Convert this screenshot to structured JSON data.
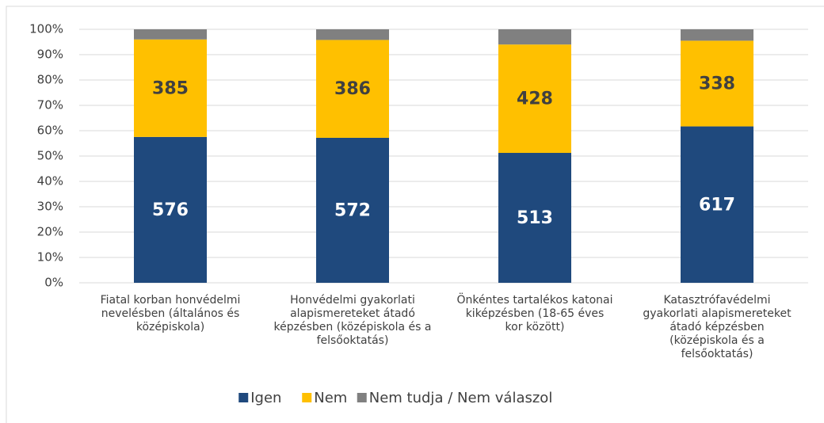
{
  "chart_data": {
    "type": "bar",
    "stacking": "percent",
    "categories": [
      [
        "Fiatal korban honvédelmi",
        "nevelésben (általános és",
        "középiskola)"
      ],
      [
        "Honvédelmi gyakorlati",
        "alapismereteket átadó",
        "képzésben (középiskola és a",
        "felsőoktatás)"
      ],
      [
        "Önkéntes tartalékos katonai",
        "kiképzésben (18-65 éves",
        "kor között)"
      ],
      [
        "Katasztrófavédelmi",
        "gyakorlati alapismereteket",
        "átadó képzésben",
        "(középiskola és a",
        "felsőoktatás)"
      ]
    ],
    "series": [
      {
        "name": "Igen",
        "color": "#1f497d",
        "label_color": "#ffffff",
        "values": [
          576,
          572,
          513,
          617
        ]
      },
      {
        "name": "Nem",
        "color": "#ffc000",
        "label_color": "#404040",
        "values": [
          385,
          386,
          428,
          338
        ]
      },
      {
        "name": "Nem tudja / Nem válaszol",
        "color": "#808080",
        "values": [
          40,
          42,
          60,
          45
        ]
      }
    ],
    "ylim": [
      0,
      100
    ],
    "yticks": [
      {
        "value": 0,
        "label": "0%"
      },
      {
        "value": 10,
        "label": "10%"
      },
      {
        "value": 20,
        "label": "20%"
      },
      {
        "value": 30,
        "label": "30%"
      },
      {
        "value": 40,
        "label": "40%"
      },
      {
        "value": 50,
        "label": "50%"
      },
      {
        "value": 60,
        "label": "60%"
      },
      {
        "value": 70,
        "label": "70%"
      },
      {
        "value": 80,
        "label": "80%"
      },
      {
        "value": 90,
        "label": "90%"
      },
      {
        "value": 100,
        "label": "100%"
      }
    ],
    "grid": true,
    "legend": "bottom"
  }
}
